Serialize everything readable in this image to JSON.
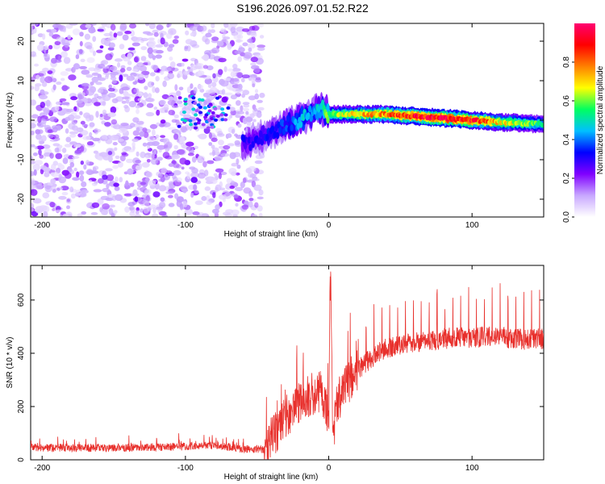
{
  "title": "S196.2026.097.01.52.R22",
  "chart_data": [
    {
      "type": "heatmap",
      "title": "S196.2026.097.01.52.R22",
      "xlabel": "Height of straight line (km)",
      "ylabel": "Frequency (Hz)",
      "xlim": [
        -208,
        150
      ],
      "ylim": [
        -24.5,
        24.5
      ],
      "x_ticks": [
        -200,
        -100,
        0,
        100
      ],
      "y_ticks": [
        -20,
        -10,
        0,
        10,
        20
      ],
      "colorbar": {
        "label": "Normalized spectral amplitude",
        "range": [
          0.0,
          1.0
        ],
        "ticks": [
          0.0,
          0.2,
          0.4,
          0.6,
          0.8
        ],
        "tick_labels": [
          "0.0",
          "0.2",
          "0.4",
          "0.6",
          "0.8"
        ],
        "colors": [
          "#ffffff",
          "#c8a8ff",
          "#8000ff",
          "#0000ff",
          "#00c0ff",
          "#00ff60",
          "#ffff00",
          "#ff8000",
          "#ff0000",
          "#ff0070"
        ]
      },
      "ridge": {
        "description_x": [
          -60,
          -50,
          -40,
          -30,
          -20,
          -10,
          -5,
          0,
          20,
          40,
          60,
          80,
          100,
          120,
          150
        ],
        "frequency": [
          -6,
          -5,
          -3,
          -1,
          0,
          2,
          3,
          1.5,
          1.5,
          1.5,
          1.0,
          0.5,
          0.0,
          -0.5,
          -1.0
        ],
        "amplitude": [
          0.3,
          0.3,
          0.35,
          0.35,
          0.45,
          0.45,
          0.5,
          0.6,
          0.7,
          0.8,
          0.9,
          0.95,
          0.9,
          0.7,
          0.55
        ]
      },
      "noise_region_x": [
        -208,
        -50
      ]
    },
    {
      "type": "line",
      "xlabel": "Height of straight line (km)",
      "ylabel": "SNR (10 * v/v)",
      "xlim": [
        -208,
        150
      ],
      "ylim": [
        0,
        730
      ],
      "x_ticks": [
        -200,
        -100,
        0,
        100
      ],
      "y_ticks": [
        0,
        200,
        400,
        600
      ],
      "series": [
        {
          "name": "SNR",
          "color": "#e8302c",
          "x": [
            -208,
            -150,
            -100,
            -80,
            -60,
            -45,
            -40,
            -30,
            -20,
            -10,
            -5,
            0,
            1,
            3,
            5,
            10,
            20,
            40,
            60,
            80,
            100,
            120,
            140,
            150
          ],
          "values": [
            45,
            45,
            50,
            55,
            40,
            40,
            80,
            160,
            220,
            250,
            260,
            150,
            720,
            60,
            200,
            260,
            340,
            420,
            440,
            455,
            460,
            460,
            450,
            455
          ]
        }
      ]
    }
  ]
}
